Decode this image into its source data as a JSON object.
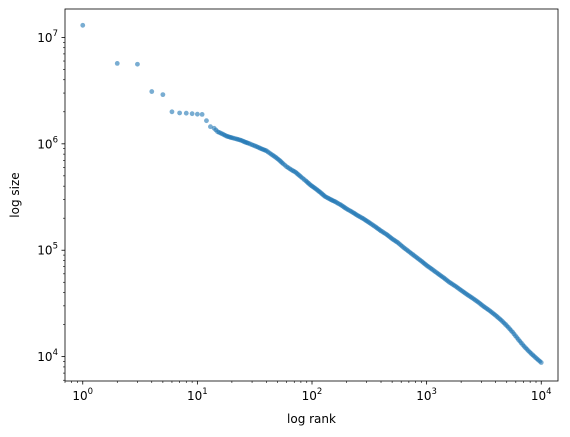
{
  "chart_data": {
    "type": "scatter",
    "xlabel": "log rank",
    "ylabel": "log size",
    "xscale": "log",
    "yscale": "log",
    "xlim": [
      0.7,
      14000
    ],
    "ylim": [
      5900,
      18500000
    ],
    "grid": false,
    "marker_color": "#1f77b4",
    "marker_alpha": 0.6,
    "x_ticks": [
      {
        "value": 1,
        "base": "10",
        "exp": "0"
      },
      {
        "value": 10,
        "base": "10",
        "exp": "1"
      },
      {
        "value": 100,
        "base": "10",
        "exp": "2"
      },
      {
        "value": 1000,
        "base": "10",
        "exp": "3"
      },
      {
        "value": 10000,
        "base": "10",
        "exp": "4"
      }
    ],
    "y_ticks": [
      {
        "value": 10000,
        "base": "10",
        "exp": "4"
      },
      {
        "value": 100000,
        "base": "10",
        "exp": "5"
      },
      {
        "value": 1000000,
        "base": "10",
        "exp": "6"
      },
      {
        "value": 10000000,
        "base": "10",
        "exp": "7"
      }
    ],
    "points": [
      [
        1,
        13000000
      ],
      [
        2,
        5700000
      ],
      [
        3,
        5600000
      ],
      [
        4,
        3100000
      ],
      [
        5,
        2900000
      ],
      [
        6,
        2000000
      ],
      [
        7,
        1950000
      ],
      [
        8,
        1940000
      ],
      [
        9,
        1920000
      ],
      [
        10,
        1900000
      ],
      [
        11,
        1890000
      ],
      [
        12,
        1650000
      ],
      [
        13,
        1450000
      ],
      [
        14,
        1400000
      ],
      [
        15,
        1300000
      ],
      [
        16,
        1260000
      ],
      [
        17,
        1220000
      ],
      [
        18,
        1180000
      ],
      [
        19,
        1160000
      ],
      [
        20,
        1140000
      ],
      [
        22,
        1110000
      ],
      [
        24,
        1080000
      ],
      [
        26,
        1040000
      ],
      [
        28,
        1010000
      ],
      [
        30,
        980000
      ],
      [
        33,
        940000
      ],
      [
        36,
        900000
      ],
      [
        40,
        860000
      ],
      [
        44,
        800000
      ],
      [
        48,
        750000
      ],
      [
        52,
        700000
      ],
      [
        56,
        650000
      ],
      [
        60,
        610000
      ],
      [
        66,
        570000
      ],
      [
        72,
        540000
      ],
      [
        80,
        490000
      ],
      [
        88,
        450000
      ],
      [
        97,
        410000
      ],
      [
        107,
        380000
      ],
      [
        118,
        350000
      ],
      [
        130,
        320000
      ],
      [
        145,
        300000
      ],
      [
        160,
        285000
      ],
      [
        180,
        265000
      ],
      [
        200,
        245000
      ],
      [
        225,
        228000
      ],
      [
        250,
        212000
      ],
      [
        280,
        198000
      ],
      [
        320,
        180000
      ],
      [
        360,
        165000
      ],
      [
        400,
        152000
      ],
      [
        450,
        140000
      ],
      [
        500,
        128000
      ],
      [
        560,
        118000
      ],
      [
        630,
        106000
      ],
      [
        710,
        96000
      ],
      [
        800,
        87000
      ],
      [
        900,
        79000
      ],
      [
        1000,
        72000
      ],
      [
        1120,
        66000
      ],
      [
        1260,
        60000
      ],
      [
        1410,
        55000
      ],
      [
        1580,
        50000
      ],
      [
        1780,
        46000
      ],
      [
        2000,
        42000
      ],
      [
        2240,
        38500
      ],
      [
        2510,
        35500
      ],
      [
        2820,
        32500
      ],
      [
        3160,
        29500
      ],
      [
        3550,
        27000
      ],
      [
        3980,
        24500
      ],
      [
        4470,
        22000
      ],
      [
        5010,
        19500
      ],
      [
        5620,
        17000
      ],
      [
        6310,
        14500
      ],
      [
        7080,
        12500
      ],
      [
        7940,
        11000
      ],
      [
        8910,
        9800
      ],
      [
        10000,
        8800
      ]
    ]
  }
}
